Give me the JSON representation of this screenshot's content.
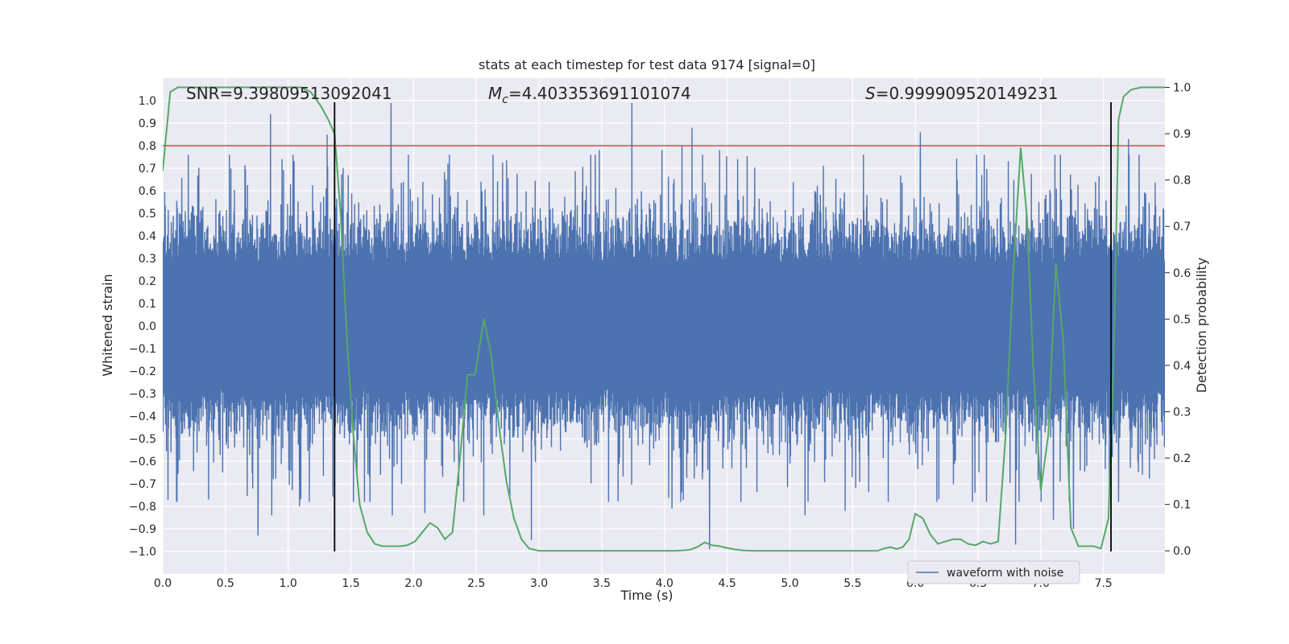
{
  "chart_data": {
    "type": "line",
    "title": "stats at each timestep for test data 9174 [signal=0]",
    "xlabel": "Time (s)",
    "ylabel": "Whitened strain",
    "y2label": "Detection probability",
    "xlim": [
      0.0,
      7.99
    ],
    "ylim": [
      -1.1,
      1.1
    ],
    "y2lim": [
      -0.05,
      1.02
    ],
    "xticks": [
      0.0,
      0.5,
      1.0,
      1.5,
      2.0,
      2.5,
      3.0,
      3.5,
      4.0,
      4.5,
      5.0,
      5.5,
      6.0,
      6.5,
      7.0,
      7.5
    ],
    "xtick_labels": [
      "0.0",
      "0.5",
      "1.0",
      "1.5",
      "2.0",
      "2.5",
      "3.0",
      "3.5",
      "4.0",
      "4.5",
      "5.0",
      "5.5",
      "6.0",
      "6.5",
      "7.0",
      "7.5"
    ],
    "yticks": [
      1.0,
      0.9,
      0.8,
      0.7,
      0.6,
      0.5,
      0.4,
      0.3,
      0.2,
      0.1,
      0.0,
      -0.1,
      -0.2,
      -0.3,
      -0.4,
      -0.5,
      -0.6,
      -0.7,
      -0.8,
      -0.9,
      -1.0
    ],
    "ytick_labels": [
      "1.0",
      "0.9",
      "0.8",
      "0.7",
      "0.6",
      "0.5",
      "0.4",
      "0.3",
      "0.2",
      "0.1",
      "0.0",
      "−0.1",
      "−0.2",
      "−0.3",
      "−0.4",
      "−0.5",
      "−0.6",
      "−0.7",
      "−0.8",
      "−0.9",
      "−1.0"
    ],
    "y2ticks": [
      1.0,
      0.9,
      0.8,
      0.7,
      0.6,
      0.5,
      0.4,
      0.3,
      0.2,
      0.1,
      0.0
    ],
    "y2tick_labels": [
      "1.0",
      "0.9",
      "0.8",
      "0.7",
      "0.6",
      "0.5",
      "0.4",
      "0.3",
      "0.2",
      "0.1",
      "0.0"
    ],
    "annotations": {
      "snr": "SNR=9.39809513092041",
      "mc_symbol": "M",
      "mc_sub": "c",
      "mc_value": "=4.403353691101074",
      "s_symbol": "S",
      "s_value": "=0.999909520149231"
    },
    "threshold": {
      "value": 0.8,
      "axis": "left"
    },
    "markers_x": [
      1.37,
      7.56
    ],
    "legend": {
      "entries": [
        "waveform with noise"
      ],
      "placement": "lower-right"
    },
    "waveform": {
      "name": "waveform with noise",
      "sample_count": 4000,
      "noise_amplitude": 0.38,
      "spikes": [
        {
          "x": 0.76,
          "y": -0.93
        },
        {
          "x": 0.86,
          "y": 0.94
        },
        {
          "x": 0.87,
          "y": -0.84
        },
        {
          "x": 1.09,
          "y": -0.8
        },
        {
          "x": 1.31,
          "y": 0.85
        },
        {
          "x": 1.37,
          "y": 0.64
        },
        {
          "x": 1.82,
          "y": 0.99
        },
        {
          "x": 1.83,
          "y": -0.84
        },
        {
          "x": 2.09,
          "y": -0.83
        },
        {
          "x": 2.56,
          "y": -0.84
        },
        {
          "x": 2.94,
          "y": -0.95
        },
        {
          "x": 3.48,
          "y": 0.78
        },
        {
          "x": 3.74,
          "y": 0.99
        },
        {
          "x": 3.98,
          "y": 0.78
        },
        {
          "x": 4.06,
          "y": -0.81
        },
        {
          "x": 4.14,
          "y": 0.8
        },
        {
          "x": 4.22,
          "y": 0.88
        },
        {
          "x": 4.36,
          "y": -0.99
        },
        {
          "x": 4.44,
          "y": 0.78
        },
        {
          "x": 5.12,
          "y": -0.84
        },
        {
          "x": 5.44,
          "y": -0.82
        },
        {
          "x": 6.04,
          "y": 0.86
        },
        {
          "x": 6.8,
          "y": -0.97
        },
        {
          "x": 7.1,
          "y": -0.86
        },
        {
          "x": 7.26,
          "y": -0.9
        },
        {
          "x": 7.56,
          "y": 0.86
        },
        {
          "x": 7.62,
          "y": -0.78
        },
        {
          "x": 7.7,
          "y": 0.83
        }
      ]
    },
    "probability": {
      "name": "detection probability",
      "x": [
        0.0,
        0.06,
        0.12,
        0.18,
        0.24,
        0.3,
        0.4,
        0.5,
        0.6,
        0.7,
        0.8,
        0.9,
        1.0,
        1.1,
        1.18,
        1.26,
        1.32,
        1.37,
        1.42,
        1.47,
        1.52,
        1.57,
        1.63,
        1.69,
        1.75,
        1.82,
        1.89,
        1.95,
        2.01,
        2.07,
        2.13,
        2.19,
        2.25,
        2.31,
        2.37,
        2.43,
        2.49,
        2.56,
        2.62,
        2.68,
        2.74,
        2.8,
        2.86,
        2.92,
        3.0,
        3.1,
        3.2,
        3.3,
        3.4,
        3.5,
        3.6,
        3.7,
        3.8,
        3.9,
        4.0,
        4.1,
        4.2,
        4.26,
        4.32,
        4.38,
        4.44,
        4.5,
        4.56,
        4.62,
        4.7,
        4.8,
        4.9,
        5.0,
        5.1,
        5.2,
        5.3,
        5.4,
        5.5,
        5.6,
        5.7,
        5.75,
        5.8,
        5.85,
        5.9,
        5.95,
        6.0,
        6.06,
        6.12,
        6.18,
        6.24,
        6.3,
        6.36,
        6.42,
        6.48,
        6.54,
        6.6,
        6.66,
        6.72,
        6.78,
        6.84,
        6.89,
        6.94,
        7.0,
        7.06,
        7.12,
        7.18,
        7.24,
        7.3,
        7.36,
        7.42,
        7.48,
        7.54,
        7.58,
        7.62,
        7.66,
        7.72,
        7.8,
        7.9,
        7.99
      ],
      "y": [
        0.82,
        0.99,
        1.0,
        1.0,
        1.0,
        1.0,
        1.0,
        1.0,
        1.0,
        1.0,
        1.0,
        1.0,
        1.0,
        1.0,
        0.99,
        0.96,
        0.93,
        0.9,
        0.72,
        0.45,
        0.25,
        0.1,
        0.04,
        0.015,
        0.01,
        0.01,
        0.01,
        0.012,
        0.02,
        0.04,
        0.06,
        0.05,
        0.025,
        0.04,
        0.2,
        0.38,
        0.38,
        0.5,
        0.42,
        0.27,
        0.15,
        0.07,
        0.025,
        0.005,
        0.0,
        0.0,
        0.0,
        0.0,
        0.0,
        0.0,
        0.0,
        0.0,
        0.0,
        0.0,
        0.0,
        0.0,
        0.002,
        0.008,
        0.018,
        0.012,
        0.01,
        0.006,
        0.003,
        0.001,
        0.0,
        0.0,
        0.0,
        0.0,
        0.0,
        0.0,
        0.0,
        0.0,
        0.0,
        0.0,
        0.0,
        0.005,
        0.008,
        0.004,
        0.008,
        0.025,
        0.08,
        0.07,
        0.035,
        0.015,
        0.02,
        0.025,
        0.025,
        0.015,
        0.012,
        0.02,
        0.015,
        0.02,
        0.25,
        0.6,
        0.87,
        0.72,
        0.4,
        0.13,
        0.25,
        0.62,
        0.45,
        0.05,
        0.01,
        0.01,
        0.01,
        0.005,
        0.07,
        0.4,
        0.93,
        0.98,
        0.995,
        1.0,
        1.0,
        1.0
      ]
    },
    "colors": {
      "waveform": "#4c72b0",
      "probability": "#55a868",
      "threshold": "#c44e52",
      "marker": "#000000",
      "plot_background": "#eaeaf2",
      "grid": "#ffffff"
    }
  }
}
